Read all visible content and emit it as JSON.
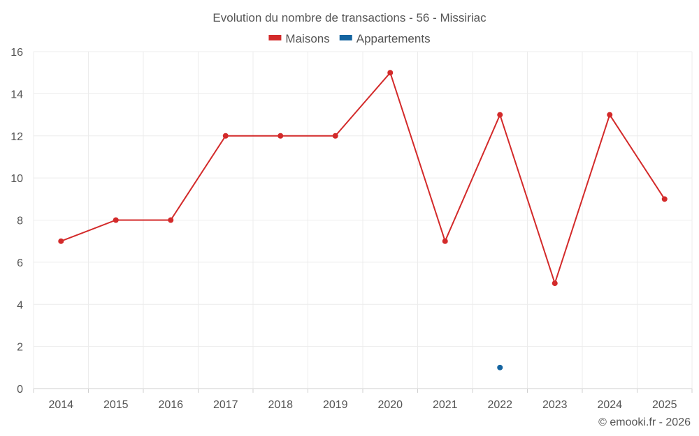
{
  "chart_data": {
    "type": "line",
    "title": "Evolution du nombre de transactions - 56 - Missiriac",
    "categories": [
      "2014",
      "2015",
      "2016",
      "2017",
      "2018",
      "2019",
      "2020",
      "2021",
      "2022",
      "2023",
      "2024",
      "2025"
    ],
    "ylim": [
      0,
      16
    ],
    "yticks": [
      0,
      2,
      4,
      6,
      8,
      10,
      12,
      14,
      16
    ],
    "legend_position": "top-center",
    "grid": true,
    "series": [
      {
        "name": "Maisons",
        "color": "#d32a2a",
        "values": [
          7,
          8,
          8,
          12,
          12,
          12,
          15,
          7,
          13,
          5,
          13,
          9
        ]
      },
      {
        "name": "Appartements",
        "color": "#1464a0",
        "values": [
          null,
          null,
          null,
          null,
          null,
          null,
          null,
          null,
          1,
          null,
          null,
          null
        ]
      }
    ]
  },
  "credit": "© emooki.fr - 2026"
}
